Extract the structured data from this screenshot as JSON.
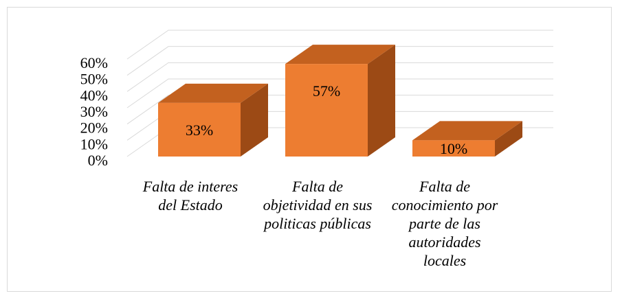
{
  "chart_data": {
    "type": "bar3d",
    "categories": [
      "Falta de interes del Estado",
      "Falta de objetividad en sus politicas públicas",
      "Falta de conocimiento por parte de las autoridades locales"
    ],
    "values": [
      33,
      57,
      10
    ],
    "value_labels": [
      "33%",
      "57%",
      "10%"
    ],
    "color": "#ed7d31",
    "ylim": [
      0,
      60
    ],
    "yticks": [
      {
        "value": 0,
        "label": "0%"
      },
      {
        "value": 10,
        "label": "10%"
      },
      {
        "value": 20,
        "label": "20%"
      },
      {
        "value": 30,
        "label": "30%"
      },
      {
        "value": 40,
        "label": "40%"
      },
      {
        "value": 50,
        "label": "50%"
      },
      {
        "value": 60,
        "label": "60%"
      }
    ],
    "grid": true
  }
}
